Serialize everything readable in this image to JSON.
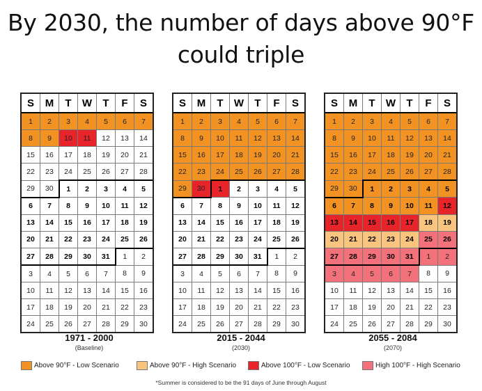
{
  "title": "By 2030, the number of days above 90°F could triple",
  "chart_data": {
    "type": "table",
    "weekday_headers": [
      "S",
      "M",
      "T",
      "W",
      "T",
      "F",
      "S"
    ],
    "legend": [
      {
        "key": "o",
        "label": "Above 90°F - Low Scenario",
        "color": "#f29222"
      },
      {
        "key": "y",
        "label": "Above 90°F - High Scenario",
        "color": "#f9c57e"
      },
      {
        "key": "r",
        "label": "Above 100°F - Low Scenario",
        "color": "#e8242b"
      },
      {
        "key": "p",
        "label": "High 100°F - High Scenario",
        "color": "#f2717a"
      }
    ],
    "footnote": "*Summer is considered to be the 91 days of June through August",
    "calendars": [
      {
        "range": "1971 - 2000",
        "subtitle": "(Baseline)",
        "weeks": [
          [
            1,
            2,
            3,
            4,
            5,
            6,
            7
          ],
          [
            8,
            9,
            10,
            11,
            12,
            13,
            14
          ],
          [
            15,
            16,
            17,
            18,
            19,
            20,
            21
          ],
          [
            22,
            23,
            24,
            25,
            26,
            27,
            28
          ],
          [
            29,
            30,
            1,
            2,
            3,
            4,
            5
          ],
          [
            6,
            7,
            8,
            9,
            10,
            11,
            12
          ],
          [
            13,
            14,
            15,
            16,
            17,
            18,
            19
          ],
          [
            20,
            21,
            22,
            23,
            24,
            25,
            26
          ],
          [
            27,
            28,
            29,
            30,
            31,
            1,
            2
          ],
          [
            3,
            4,
            5,
            6,
            7,
            8,
            9
          ],
          [
            10,
            11,
            12,
            13,
            14,
            15,
            16
          ],
          [
            17,
            18,
            19,
            20,
            21,
            22,
            23
          ],
          [
            24,
            25,
            26,
            27,
            28,
            29,
            30
          ]
        ],
        "highlights": [
          "ooooooo",
          "oorr...",
          ".......",
          ".......",
          ".......",
          ".......",
          ".......",
          ".......",
          ".......",
          ".......",
          ".......",
          ".......",
          "......."
        ]
      },
      {
        "range": "2015 - 2044",
        "subtitle": "(2030)",
        "weeks": [
          [
            1,
            2,
            3,
            4,
            5,
            6,
            7
          ],
          [
            8,
            9,
            10,
            11,
            12,
            13,
            14
          ],
          [
            15,
            16,
            17,
            18,
            19,
            20,
            21
          ],
          [
            22,
            23,
            24,
            25,
            26,
            27,
            28
          ],
          [
            29,
            30,
            1,
            2,
            3,
            4,
            5
          ],
          [
            6,
            7,
            8,
            9,
            10,
            11,
            12
          ],
          [
            13,
            14,
            15,
            16,
            17,
            18,
            19
          ],
          [
            20,
            21,
            22,
            23,
            24,
            25,
            26
          ],
          [
            27,
            28,
            29,
            30,
            31,
            1,
            2
          ],
          [
            3,
            4,
            5,
            6,
            7,
            8,
            9
          ],
          [
            10,
            11,
            12,
            13,
            14,
            15,
            16
          ],
          [
            17,
            18,
            19,
            20,
            21,
            22,
            23
          ],
          [
            24,
            25,
            26,
            27,
            28,
            29,
            30
          ]
        ],
        "highlights": [
          "ooooooo",
          "ooooooo",
          "ooooooo",
          "ooooooo",
          "orr....",
          ".......",
          ".......",
          ".......",
          ".......",
          ".......",
          ".......",
          ".......",
          "......."
        ]
      },
      {
        "range": "2055 - 2084",
        "subtitle": "(2070)",
        "weeks": [
          [
            1,
            2,
            3,
            4,
            5,
            6,
            7
          ],
          [
            8,
            9,
            10,
            11,
            12,
            13,
            14
          ],
          [
            15,
            16,
            17,
            18,
            19,
            20,
            21
          ],
          [
            22,
            23,
            24,
            25,
            26,
            27,
            28
          ],
          [
            29,
            30,
            1,
            2,
            3,
            4,
            5
          ],
          [
            6,
            7,
            8,
            9,
            10,
            11,
            12
          ],
          [
            13,
            14,
            15,
            16,
            17,
            18,
            19
          ],
          [
            20,
            21,
            22,
            23,
            24,
            25,
            26
          ],
          [
            27,
            28,
            29,
            30,
            31,
            1,
            2
          ],
          [
            3,
            4,
            5,
            6,
            7,
            8,
            9
          ],
          [
            10,
            11,
            12,
            13,
            14,
            15,
            16
          ],
          [
            17,
            18,
            19,
            20,
            21,
            22,
            23
          ],
          [
            24,
            25,
            26,
            27,
            28,
            29,
            30
          ]
        ],
        "highlights": [
          "ooooooo",
          "ooooooo",
          "ooooooo",
          "ooooooo",
          "ooooooo",
          "oooooor",
          "rrrrryy",
          "yyyyypp",
          "ppppppp",
          "ppppp..",
          ".......",
          ".......",
          "......."
        ]
      }
    ]
  }
}
